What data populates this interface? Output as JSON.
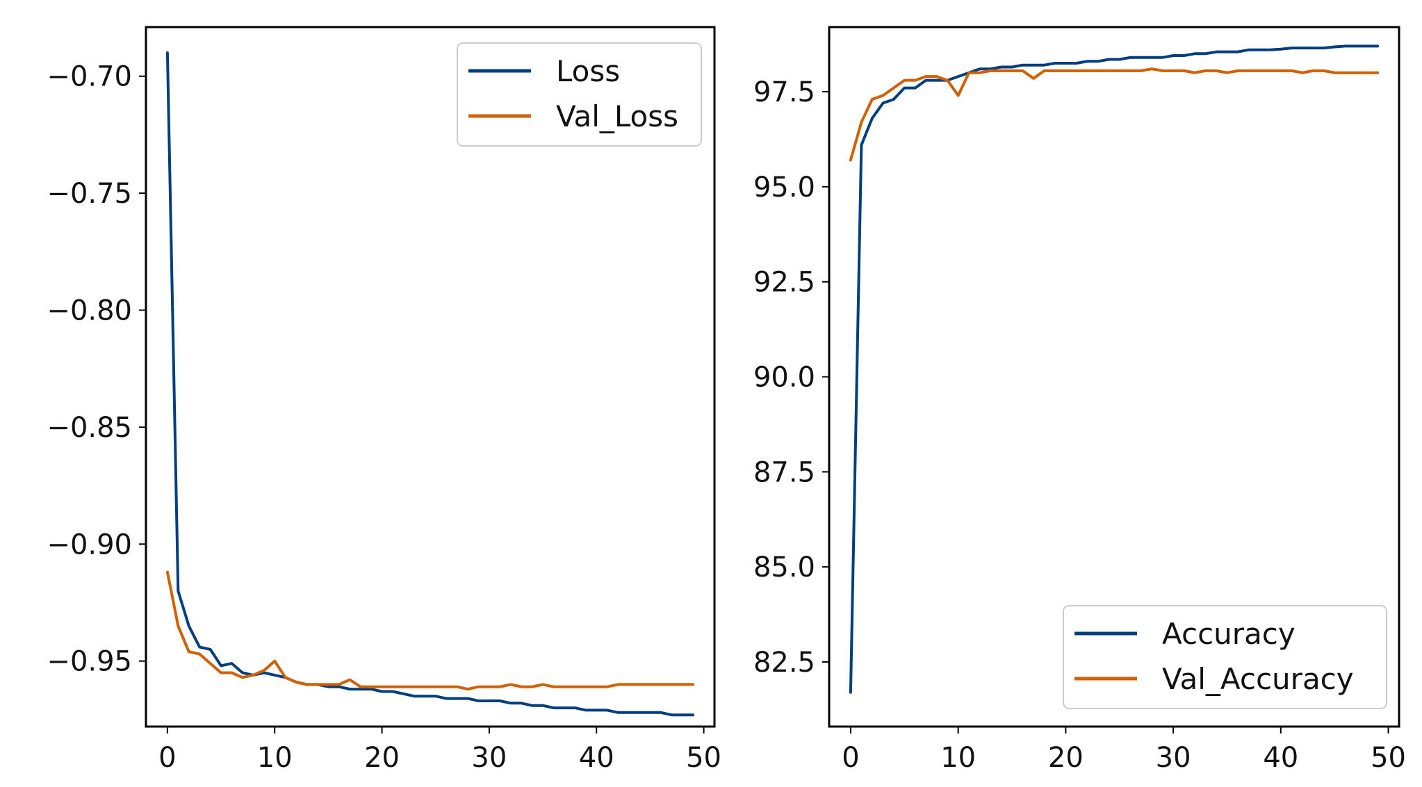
{
  "chart_data": [
    {
      "type": "line",
      "title": "",
      "xlabel": "",
      "ylabel": "",
      "xlim": [
        -2,
        51
      ],
      "ylim": [
        -0.978,
        -0.679
      ],
      "xticks": [
        0,
        10,
        20,
        30,
        40,
        50
      ],
      "yticks": [
        -0.7,
        -0.75,
        -0.8,
        -0.85,
        -0.9,
        -0.95
      ],
      "ytick_labels": [
        "−0.70",
        "−0.75",
        "−0.80",
        "−0.85",
        "−0.90",
        "−0.95"
      ],
      "xtick_labels": [
        "0",
        "10",
        "20",
        "30",
        "40",
        "50"
      ],
      "grid": false,
      "legend": "upper right",
      "series": [
        {
          "name": "Loss",
          "color": "#003f7f",
          "x": [
            0,
            1,
            2,
            3,
            4,
            5,
            6,
            7,
            8,
            9,
            10,
            11,
            12,
            13,
            14,
            15,
            16,
            17,
            18,
            19,
            20,
            21,
            22,
            23,
            24,
            25,
            26,
            27,
            28,
            29,
            30,
            31,
            32,
            33,
            34,
            35,
            36,
            37,
            38,
            39,
            40,
            41,
            42,
            43,
            44,
            45,
            46,
            47,
            48,
            49
          ],
          "values": [
            -0.69,
            -0.92,
            -0.935,
            -0.944,
            -0.945,
            -0.952,
            -0.951,
            -0.955,
            -0.956,
            -0.955,
            -0.956,
            -0.957,
            -0.959,
            -0.96,
            -0.96,
            -0.961,
            -0.961,
            -0.962,
            -0.962,
            -0.962,
            -0.963,
            -0.963,
            -0.964,
            -0.965,
            -0.965,
            -0.965,
            -0.966,
            -0.966,
            -0.966,
            -0.967,
            -0.967,
            -0.967,
            -0.968,
            -0.968,
            -0.969,
            -0.969,
            -0.97,
            -0.97,
            -0.97,
            -0.971,
            -0.971,
            -0.971,
            -0.972,
            -0.972,
            -0.972,
            -0.972,
            -0.972,
            -0.973,
            -0.973,
            -0.973
          ]
        },
        {
          "name": "Val_Loss",
          "color": "#d35f00",
          "x": [
            0,
            1,
            2,
            3,
            4,
            5,
            6,
            7,
            8,
            9,
            10,
            11,
            12,
            13,
            14,
            15,
            16,
            17,
            18,
            19,
            20,
            21,
            22,
            23,
            24,
            25,
            26,
            27,
            28,
            29,
            30,
            31,
            32,
            33,
            34,
            35,
            36,
            37,
            38,
            39,
            40,
            41,
            42,
            43,
            44,
            45,
            46,
            47,
            48,
            49
          ],
          "values": [
            -0.912,
            -0.935,
            -0.946,
            -0.947,
            -0.951,
            -0.955,
            -0.955,
            -0.957,
            -0.956,
            -0.954,
            -0.95,
            -0.957,
            -0.959,
            -0.96,
            -0.96,
            -0.96,
            -0.96,
            -0.958,
            -0.961,
            -0.961,
            -0.961,
            -0.961,
            -0.961,
            -0.961,
            -0.961,
            -0.961,
            -0.961,
            -0.961,
            -0.962,
            -0.961,
            -0.961,
            -0.961,
            -0.96,
            -0.961,
            -0.961,
            -0.96,
            -0.961,
            -0.961,
            -0.961,
            -0.961,
            -0.961,
            -0.961,
            -0.96,
            -0.96,
            -0.96,
            -0.96,
            -0.96,
            -0.96,
            -0.96,
            -0.96
          ]
        }
      ]
    },
    {
      "type": "line",
      "title": "",
      "xlabel": "",
      "ylabel": "",
      "xlim": [
        -2,
        51
      ],
      "ylim": [
        80.8,
        99.2
      ],
      "xticks": [
        0,
        10,
        20,
        30,
        40,
        50
      ],
      "yticks": [
        82.5,
        85.0,
        87.5,
        90.0,
        92.5,
        95.0,
        97.5
      ],
      "ytick_labels": [
        "82.5",
        "85.0",
        "87.5",
        "90.0",
        "92.5",
        "95.0",
        "97.5"
      ],
      "xtick_labels": [
        "0",
        "10",
        "20",
        "30",
        "40",
        "50"
      ],
      "grid": false,
      "legend": "lower right",
      "series": [
        {
          "name": "Accuracy",
          "color": "#003f7f",
          "x": [
            0,
            1,
            2,
            3,
            4,
            5,
            6,
            7,
            8,
            9,
            10,
            11,
            12,
            13,
            14,
            15,
            16,
            17,
            18,
            19,
            20,
            21,
            22,
            23,
            24,
            25,
            26,
            27,
            28,
            29,
            30,
            31,
            32,
            33,
            34,
            35,
            36,
            37,
            38,
            39,
            40,
            41,
            42,
            43,
            44,
            45,
            46,
            47,
            48,
            49
          ],
          "values": [
            81.7,
            96.1,
            96.8,
            97.2,
            97.3,
            97.6,
            97.6,
            97.8,
            97.8,
            97.8,
            97.9,
            98.0,
            98.1,
            98.1,
            98.15,
            98.15,
            98.2,
            98.2,
            98.2,
            98.25,
            98.25,
            98.25,
            98.3,
            98.3,
            98.35,
            98.35,
            98.4,
            98.4,
            98.4,
            98.4,
            98.45,
            98.45,
            98.5,
            98.5,
            98.55,
            98.55,
            98.55,
            98.6,
            98.6,
            98.6,
            98.62,
            98.65,
            98.65,
            98.65,
            98.65,
            98.68,
            98.7,
            98.7,
            98.7,
            98.7
          ]
        },
        {
          "name": "Val_Accuracy",
          "color": "#d35f00",
          "x": [
            0,
            1,
            2,
            3,
            4,
            5,
            6,
            7,
            8,
            9,
            10,
            11,
            12,
            13,
            14,
            15,
            16,
            17,
            18,
            19,
            20,
            21,
            22,
            23,
            24,
            25,
            26,
            27,
            28,
            29,
            30,
            31,
            32,
            33,
            34,
            35,
            36,
            37,
            38,
            39,
            40,
            41,
            42,
            43,
            44,
            45,
            46,
            47,
            48,
            49
          ],
          "values": [
            95.7,
            96.7,
            97.3,
            97.4,
            97.6,
            97.8,
            97.8,
            97.9,
            97.9,
            97.8,
            97.4,
            98.0,
            98.0,
            98.05,
            98.05,
            98.05,
            98.05,
            97.85,
            98.05,
            98.05,
            98.05,
            98.05,
            98.05,
            98.05,
            98.05,
            98.05,
            98.05,
            98.05,
            98.1,
            98.05,
            98.05,
            98.05,
            98.0,
            98.05,
            98.05,
            98.0,
            98.05,
            98.05,
            98.05,
            98.05,
            98.05,
            98.05,
            98.0,
            98.05,
            98.05,
            98.0,
            98.0,
            98.0,
            98.0,
            98.0
          ]
        }
      ]
    }
  ]
}
